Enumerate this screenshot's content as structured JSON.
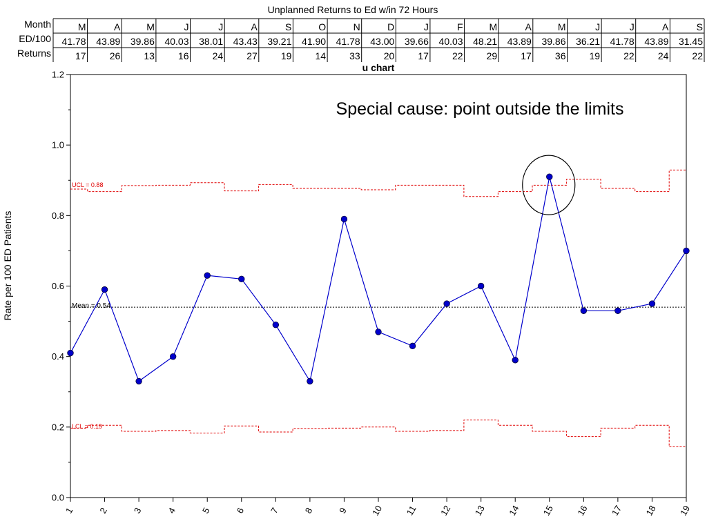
{
  "table": {
    "title": "Unplanned Returns to Ed w/in 72 Hours",
    "row_labels": [
      "Month",
      "ED/100",
      "Returns"
    ],
    "months": [
      "M",
      "A",
      "M",
      "J",
      "J",
      "A",
      "S",
      "O",
      "N",
      "D",
      "J",
      "F",
      "M",
      "A",
      "M",
      "J",
      "J",
      "A",
      "S"
    ],
    "ed_per_100": [
      "41.78",
      "43.89",
      "39.86",
      "40.03",
      "38.01",
      "43.43",
      "39.21",
      "41.90",
      "41.78",
      "43.00",
      "39.66",
      "40.03",
      "48.21",
      "43.89",
      "39.86",
      "36.21",
      "41.78",
      "43.89",
      "31.45"
    ],
    "returns": [
      "17",
      "26",
      "13",
      "16",
      "24",
      "27",
      "19",
      "14",
      "33",
      "20",
      "17",
      "22",
      "29",
      "17",
      "36",
      "19",
      "22",
      "24",
      "22"
    ]
  },
  "chart_data": {
    "type": "line",
    "title": "u chart",
    "ylabel": "Rate per 100 ED Patients",
    "xlabel": "",
    "ylim": [
      0,
      1.2
    ],
    "xlim": [
      1,
      19
    ],
    "x": [
      1,
      2,
      3,
      4,
      5,
      6,
      7,
      8,
      9,
      10,
      11,
      12,
      13,
      14,
      15,
      16,
      17,
      18,
      19
    ],
    "y_ticks": [
      "0.0",
      "0.2",
      "0.4",
      "0.6",
      "0.8",
      "1.0",
      "1.2"
    ],
    "x_ticks": [
      "1",
      "2",
      "3",
      "4",
      "5",
      "6",
      "7",
      "8",
      "9",
      "10",
      "11",
      "12",
      "13",
      "14",
      "15",
      "16",
      "17",
      "18",
      "19"
    ],
    "series": [
      {
        "values": [
          0.41,
          0.59,
          0.33,
          0.4,
          0.63,
          0.62,
          0.49,
          0.33,
          0.79,
          0.47,
          0.43,
          0.55,
          0.6,
          0.39,
          0.91,
          0.53,
          0.53,
          0.55,
          0.7
        ]
      }
    ],
    "ucl": [
      0.875,
      0.868,
      0.885,
      0.886,
      0.893,
      0.87,
      0.888,
      0.877,
      0.877,
      0.873,
      0.886,
      0.886,
      0.854,
      0.868,
      0.886,
      0.903,
      0.877,
      0.868,
      0.929
    ],
    "lcl": [
      0.197,
      0.205,
      0.188,
      0.19,
      0.183,
      0.203,
      0.186,
      0.196,
      0.197,
      0.2,
      0.188,
      0.19,
      0.22,
      0.205,
      0.188,
      0.173,
      0.197,
      0.205,
      0.144
    ],
    "mean": 0.54,
    "ucl_label": "UCL = 0.88",
    "lcl_label": "LCL = 0.19",
    "mean_label": "Mean = 0.54",
    "annotation": "Special cause: point outside the limits",
    "highlight_index": 14,
    "colors": {
      "series": "#0000cc",
      "marker": "#0000cc",
      "limits": "#e00000",
      "mean": "#000000",
      "annotation": "#000000"
    }
  }
}
